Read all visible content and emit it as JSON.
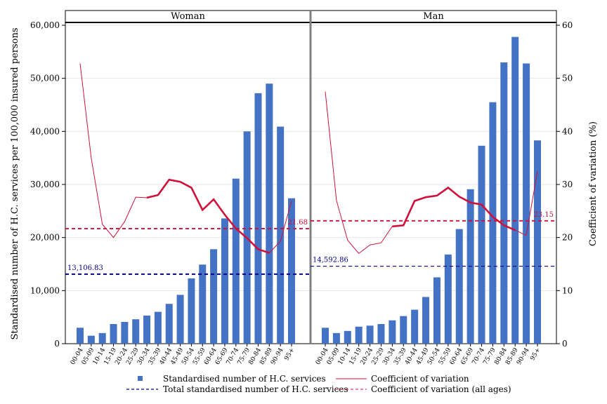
{
  "chart_data": {
    "type": "bar",
    "categories": [
      "00-04",
      "05-09",
      "10-14",
      "15-19",
      "20-24",
      "25-29",
      "30-34",
      "35-39",
      "40-44",
      "45-49",
      "50-54",
      "55-59",
      "60-64",
      "65-69",
      "70-74",
      "75-79",
      "80-84",
      "85-89",
      "90-94",
      "95+"
    ],
    "y_left_label": "Standardised number of H.C. services per 100,000 insured persons",
    "y_right_label": "Coefficient of variation (%)",
    "y_left_ticks": [
      "0",
      "10,000",
      "20,000",
      "30,000",
      "40,000",
      "50,000",
      "60,000"
    ],
    "y_right_ticks": [
      "0",
      "10",
      "20",
      "30",
      "40",
      "50",
      "60"
    ],
    "y_left_range": [
      0,
      60000
    ],
    "y_right_range": [
      0,
      60
    ],
    "panels": [
      {
        "title": "Woman",
        "bars": [
          3000,
          1500,
          2000,
          3700,
          4100,
          4600,
          5300,
          6000,
          7500,
          9200,
          12300,
          14900,
          17800,
          23600,
          31100,
          40000,
          47200,
          49000,
          40900,
          27400
        ],
        "cv": [
          52.8,
          35,
          22.5,
          20,
          23,
          27.6,
          27.5,
          28,
          30.9,
          30.5,
          29.4,
          25.2,
          27.2,
          24.3,
          21.7,
          19.9,
          17.8,
          17.1,
          19.3,
          26.9
        ],
        "total": 13106.83,
        "total_label": "13,106.83",
        "cv_all": 21.68,
        "cv_all_label": "21.68"
      },
      {
        "title": "Man",
        "bars": [
          3000,
          2000,
          2400,
          3200,
          3400,
          3700,
          4400,
          5200,
          6400,
          8800,
          12500,
          16800,
          21600,
          29100,
          37300,
          45500,
          53000,
          57800,
          52800,
          38300
        ],
        "cv": [
          47.5,
          27,
          19.5,
          17,
          18.6,
          19,
          22.1,
          22.3,
          26.9,
          27.6,
          27.9,
          29.4,
          27.7,
          26.6,
          26.2,
          23.9,
          22.3,
          21.4,
          20.4,
          32.5
        ],
        "total": 14592.86,
        "total_label": "14,592.86",
        "cv_all": 23.15,
        "cv_all_label": "23.15"
      }
    ],
    "legend": {
      "bars": "Standardised number of H.C. services",
      "total": "Total standardised number of H.C. services",
      "cv": "Coefficient of variation",
      "cv_all": "Coefficient of variation (all ages)"
    },
    "colors": {
      "bar": "#4472c4",
      "cv_line": "#d0103a",
      "total_line": "#00008b",
      "cv_all_line": "#d0103a"
    },
    "legend_placement": "bottom",
    "grid": true
  }
}
